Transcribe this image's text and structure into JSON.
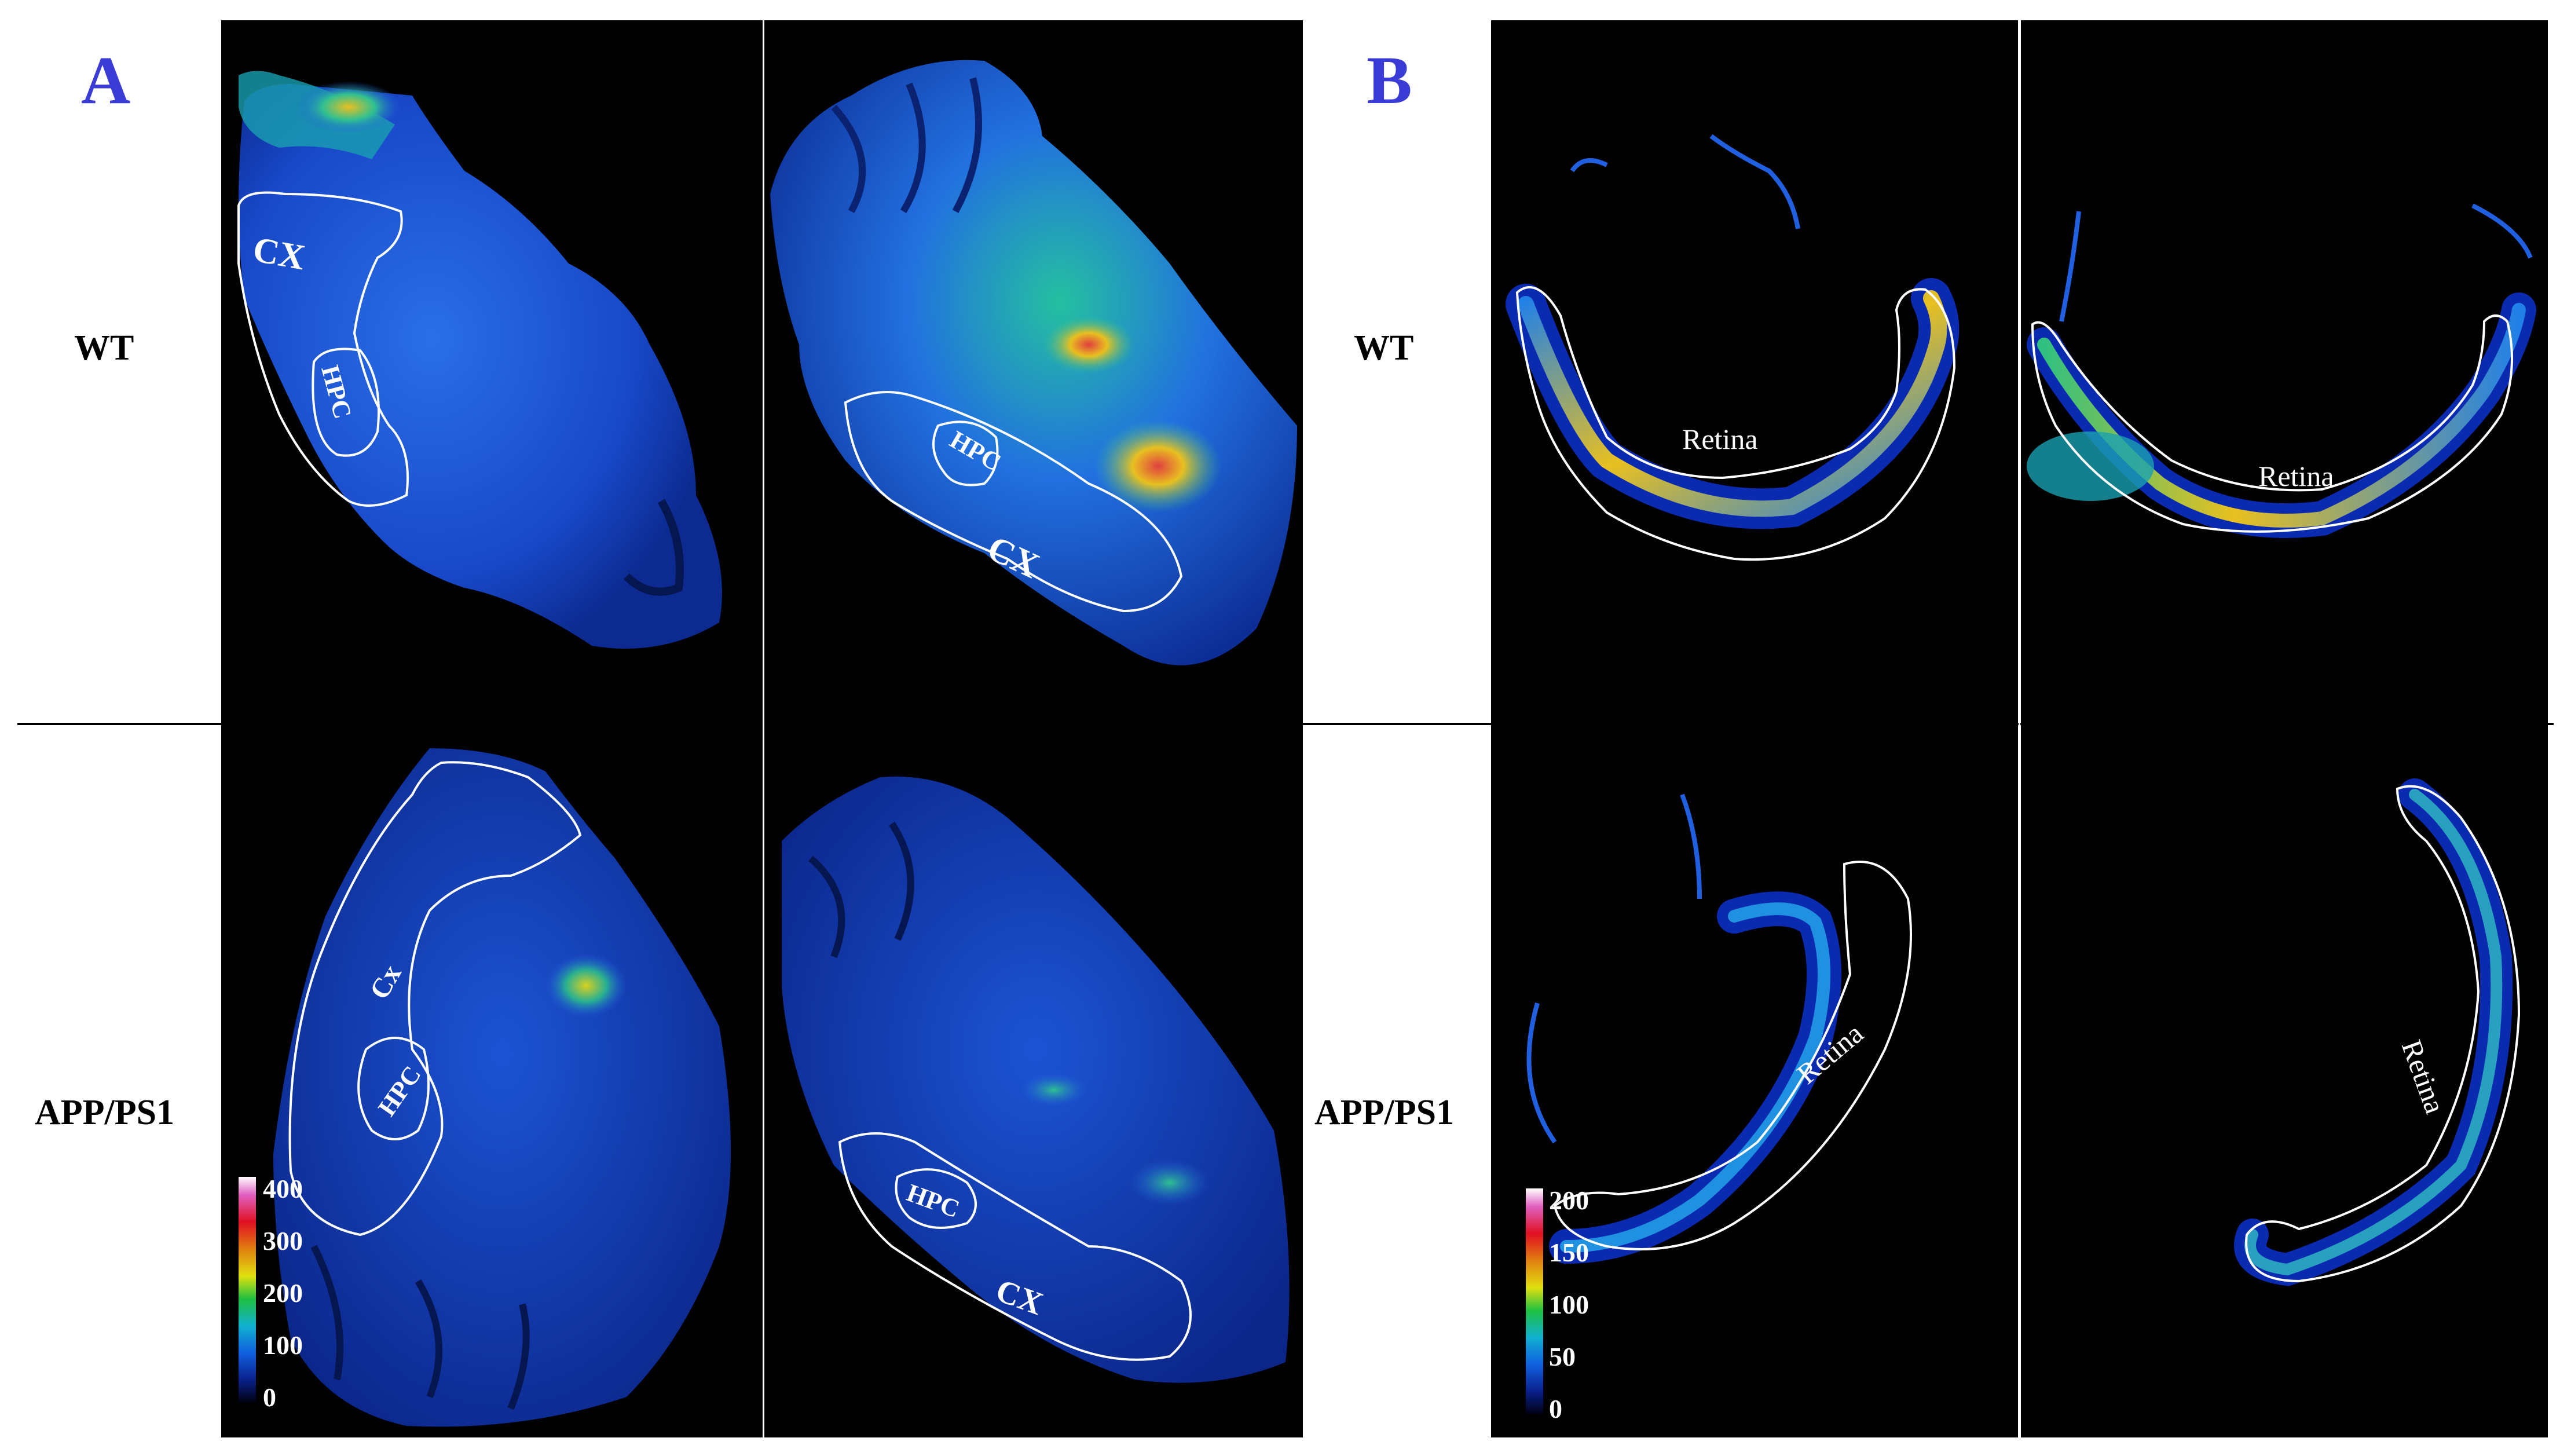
{
  "panels": {
    "a": {
      "letter": "A"
    },
    "b": {
      "letter": "B"
    }
  },
  "rows": {
    "wt": "WT",
    "app": "APP/PS1"
  },
  "region_labels": {
    "cx_upper": "CX",
    "cx_lower_small": "Cx",
    "hpc": "HPC",
    "retina": "Retina"
  },
  "scale_a": {
    "ticks": [
      "400",
      "300",
      "200",
      "100",
      "0"
    ]
  },
  "scale_b": {
    "ticks": [
      "200",
      "150",
      "100",
      "50",
      "0"
    ]
  },
  "colors": {
    "panel_letter": "#3b3bd6",
    "background": "#000000",
    "outline": "#ffffff",
    "tissue_low": "#0a2a9a",
    "tissue_mid": "#1f5fe0",
    "tissue_high": "#22c8a8",
    "hot": "#e8c020"
  }
}
